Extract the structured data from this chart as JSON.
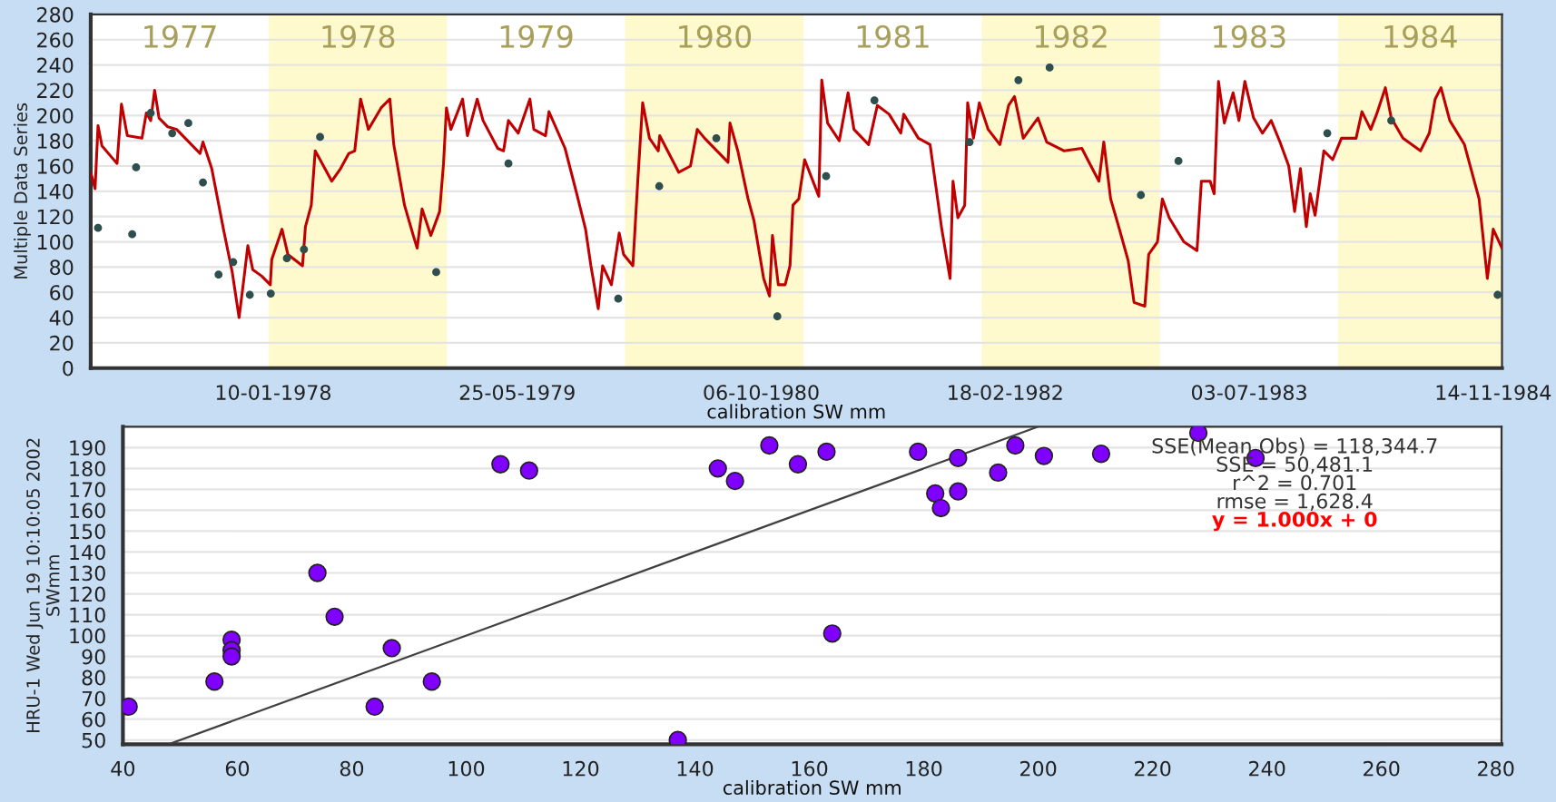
{
  "chart_data": [
    {
      "type": "line",
      "ylabel": "Multiple Data Series",
      "xlabel": "calibration SW mm",
      "xlim": [
        "1977-01-01",
        "1984-12-02"
      ],
      "ylim": [
        0,
        280
      ],
      "yticks": [
        0,
        20,
        40,
        60,
        80,
        100,
        120,
        140,
        160,
        180,
        200,
        220,
        240,
        260,
        280
      ],
      "xticks": [
        {
          "value": "1978-01-10",
          "label": "10-01-1978"
        },
        {
          "value": "1979-05-25",
          "label": "25-05-1979"
        },
        {
          "value": "1980-10-06",
          "label": "06-10-1980"
        },
        {
          "value": "1982-02-18",
          "label": "18-02-1982"
        },
        {
          "value": "1983-07-03",
          "label": "03-07-1983"
        },
        {
          "value": "1984-11-14",
          "label": "14-11-1984"
        }
      ],
      "grid": "y",
      "bands": [
        {
          "axis": "x",
          "from": "1978-01-01",
          "to": "1979-01-01",
          "color": "#fffacd",
          "label": "1978"
        },
        {
          "axis": "x",
          "from": "1980-01-01",
          "to": "1981-01-01",
          "color": "#fffacd",
          "label": "1980"
        },
        {
          "axis": "x",
          "from": "1982-01-01",
          "to": "1983-01-01",
          "color": "#fffacd",
          "label": "1982"
        },
        {
          "axis": "x",
          "from": "1984-01-01",
          "to": "1985-01-01",
          "color": "#fffacd",
          "label": "1984"
        }
      ],
      "annotations": [
        "1977",
        "1979",
        "1981",
        "1983"
      ],
      "series": [
        {
          "color": "#c00000",
          "marker": "none",
          "x": [
            "1977-01-01",
            "1977-01-10",
            "1977-01-16",
            "1977-01-24",
            "1977-02-15",
            "1977-02-24",
            "1977-03-05",
            "1977-03-17",
            "1977-04-16",
            "1977-04-25",
            "1977-05-04",
            "1977-05-12",
            "1977-05-21",
            "1977-06-08",
            "1977-06-26",
            "1977-08-13",
            "1977-08-19",
            "1977-09-06",
            "1977-09-30",
            "1977-10-18",
            "1977-11-01",
            "1977-11-11",
            "1977-11-19",
            "1977-11-29",
            "1977-12-17",
            "1978-01-04",
            "1978-01-07",
            "1978-01-28",
            "1978-02-09",
            "1978-03-11",
            "1978-03-17",
            "1978-03-29",
            "1978-04-06",
            "1978-04-16",
            "1978-05-10",
            "1978-05-28",
            "1978-06-14",
            "1978-06-26",
            "1978-07-08",
            "1978-07-24",
            "1978-08-07",
            "1978-08-19",
            "1978-09-06",
            "1978-09-14",
            "1978-10-06",
            "1978-10-24",
            "1978-11-01",
            "1978-11-11",
            "1978-11-29",
            "1978-12-17",
            "1978-12-25",
            "1978-12-31",
            "1979-01-09",
            "1979-02-02",
            "1979-02-12",
            "1979-03-04",
            "1979-03-16",
            "1979-04-15",
            "1979-04-27",
            "1979-05-07",
            "1979-05-27",
            "1979-06-20",
            "1979-06-28",
            "1979-07-22",
            "1979-07-29",
            "1979-08-31",
            "1979-09-24",
            "1979-10-12",
            "1979-10-23",
            "1979-11-07",
            "1979-11-16",
            "1979-12-04",
            "1979-12-20",
            "1979-12-29",
            "1980-01-17",
            "1980-01-27",
            "1980-02-06",
            "1980-02-20",
            "1980-03-09",
            "1980-03-12",
            "1980-04-20",
            "1980-05-14",
            "1980-05-28",
            "1980-06-12",
            "1980-07-30",
            "1980-08-03",
            "1980-08-19",
            "1980-09-09",
            "1980-09-21",
            "1980-10-11",
            "1980-10-23",
            "1980-10-29",
            "1980-11-10",
            "1980-11-24",
            "1980-12-04",
            "1980-12-10",
            "1980-12-22",
            "1981-01-03",
            "1981-02-01",
            "1981-02-07",
            "1981-02-19",
            "1981-03-15",
            "1981-04-02",
            "1981-04-14",
            "1981-05-14",
            "1981-06-01",
            "1981-06-25",
            "1981-07-19",
            "1981-07-25",
            "1981-08-24",
            "1981-09-17",
            "1981-10-11",
            "1981-10-28",
            "1981-11-03",
            "1981-11-13",
            "1981-11-27",
            "1981-12-03",
            "1981-12-15",
            "1981-12-27",
            "1982-01-14",
            "1982-02-07",
            "1982-02-25",
            "1982-03-09",
            "1982-03-27",
            "1982-04-26",
            "1982-05-14",
            "1982-06-19",
            "1982-07-25",
            "1982-08-06",
            "1982-08-29",
            "1982-09-08",
            "1982-09-22",
            "1982-10-10",
            "1982-10-28",
            "1982-11-09",
            "1982-12-01",
            "1982-12-09",
            "1982-12-27",
            "1983-01-06",
            "1983-01-20",
            "1983-02-19",
            "1983-03-18",
            "1983-03-27",
            "1983-04-14",
            "1983-04-22",
            "1983-05-01",
            "1983-05-13",
            "1983-05-31",
            "1983-06-12",
            "1983-06-24",
            "1983-07-12",
            "1983-07-30",
            "1983-08-17",
            "1983-09-04",
            "1983-09-22",
            "1983-10-04",
            "1983-10-16",
            "1983-10-28",
            "1983-11-05",
            "1983-11-15",
            "1983-12-03",
            "1983-12-21",
            "1984-01-08",
            "1984-02-07",
            "1984-02-19",
            "1984-03-08",
            "1984-03-20",
            "1984-04-07",
            "1984-04-19",
            "1984-05-13",
            "1984-06-18",
            "1984-07-06",
            "1984-07-18",
            "1984-07-30",
            "1984-08-17",
            "1984-09-16",
            "1984-10-16",
            "1984-11-02",
            "1984-11-14",
            "1984-12-02"
          ],
          "values": [
            155,
            142,
            192,
            176,
            166,
            162,
            209,
            184,
            182,
            202,
            196,
            220,
            198,
            191,
            189,
            170,
            179,
            158,
            110,
            76,
            40,
            71,
            97,
            78,
            73,
            66,
            86,
            110,
            90,
            81,
            112,
            129,
            172,
            165,
            148,
            158,
            170,
            172,
            213,
            189,
            198,
            206,
            213,
            177,
            129,
            105,
            95,
            126,
            105,
            124,
            162,
            206,
            189,
            213,
            184,
            213,
            196,
            174,
            172,
            196,
            186,
            213,
            189,
            184,
            203,
            174,
            138,
            110,
            81,
            47,
            81,
            66,
            107,
            90,
            81,
            148,
            210,
            182,
            172,
            184,
            155,
            160,
            189,
            182,
            163,
            194,
            172,
            134,
            117,
            71,
            57,
            105,
            66,
            66,
            81,
            129,
            134,
            165,
            136,
            228,
            194,
            180,
            218,
            189,
            177,
            208,
            201,
            186,
            201,
            182,
            177,
            110,
            71,
            148,
            119,
            129,
            210,
            182,
            210,
            189,
            177,
            208,
            215,
            182,
            198,
            179,
            172,
            174,
            165,
            148,
            179,
            134,
            110,
            85,
            52,
            49,
            90,
            100,
            134,
            119,
            100,
            93,
            148,
            148,
            138,
            227,
            194,
            218,
            196,
            227,
            198,
            186,
            196,
            179,
            160,
            124,
            158,
            112,
            138,
            121,
            172,
            165,
            182,
            182,
            203,
            189,
            201,
            222,
            198,
            182,
            172,
            186,
            213,
            222,
            196,
            177,
            134,
            71,
            110,
            95
          ]
        },
        {
          "type": "scatter",
          "color": "#2f4f4f",
          "marker": "circle",
          "x": [
            "1977-01-16",
            "1977-03-27",
            "1977-04-04",
            "1977-05-04",
            "1977-06-17",
            "1977-07-20",
            "1977-08-19",
            "1977-09-20",
            "1977-10-20",
            "1977-11-23",
            "1978-01-05",
            "1978-02-07",
            "1978-03-14",
            "1978-04-16",
            "1978-12-10",
            "1979-05-07",
            "1979-12-18",
            "1980-03-11",
            "1980-07-06",
            "1980-11-08",
            "1981-02-16",
            "1981-05-26",
            "1981-12-07",
            "1982-03-17",
            "1982-05-20",
            "1982-11-23",
            "1983-02-08",
            "1983-12-10",
            "1984-04-19",
            "1984-11-23"
          ],
          "values": [
            111,
            106,
            159,
            202,
            186,
            194,
            147,
            74,
            84,
            58,
            59,
            87,
            94,
            183,
            76,
            162,
            55,
            144,
            182,
            41,
            152,
            212,
            179,
            228,
            238,
            137,
            164,
            186,
            196,
            58
          ]
        }
      ]
    },
    {
      "type": "scatter",
      "ylabel": "HRU-1 Wed Jun 19 10:10:05 2002\nSWmm",
      "xlabel": "calibration SW mm",
      "xlim": [
        40,
        281
      ],
      "ylim": [
        48,
        200
      ],
      "xticks": [
        40,
        60,
        80,
        100,
        120,
        140,
        160,
        180,
        200,
        220,
        240,
        260,
        280
      ],
      "yticks": [
        50,
        60,
        70,
        80,
        90,
        100,
        110,
        120,
        130,
        140,
        150,
        160,
        170,
        180,
        190
      ],
      "grid": "y",
      "annotations": [
        "SSE(Mean Obs) = 118,344.7",
        "SSE = 50,481.1",
        "r^2 = 0.701",
        "rmse = 1,628.4",
        "y = 1.000x + 0"
      ],
      "series": [
        {
          "color": "#8000ff",
          "marker": "circle",
          "x": [
            41,
            56,
            59,
            59,
            59,
            74,
            77,
            84,
            87,
            94,
            106,
            111,
            137,
            144,
            147,
            153,
            158,
            163,
            164,
            179,
            182,
            183,
            186,
            186,
            193,
            196,
            201,
            211,
            228,
            238
          ],
          "values": [
            66,
            78,
            98,
            93,
            90,
            130,
            109,
            66,
            94,
            78,
            182,
            179,
            50,
            180,
            174,
            191,
            182,
            188,
            101,
            188,
            168,
            161,
            169,
            185,
            178,
            191,
            186,
            187,
            197,
            185
          ]
        },
        {
          "type": "line",
          "color": "#404040",
          "marker": "none",
          "x": [
            48,
            200
          ],
          "values": [
            48,
            200
          ]
        }
      ]
    }
  ]
}
